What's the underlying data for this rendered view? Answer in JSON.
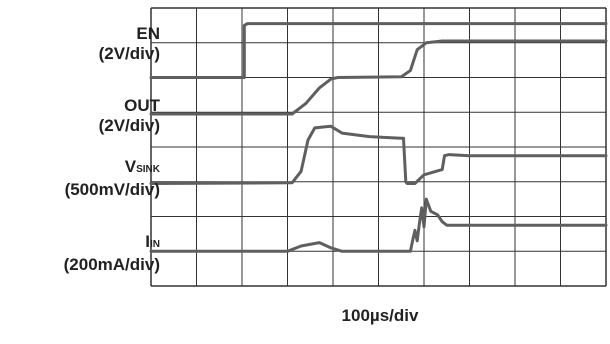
{
  "chart_data": {
    "type": "line",
    "title": "",
    "xlabel": "100µs/div",
    "grid": true,
    "x_divisions": 10,
    "y_divisions": 8,
    "trace_color": "#5f5f5f",
    "grid_color": "#333333",
    "channels": [
      {
        "name": "EN",
        "scale": "(2V/div)",
        "points": [
          [
            0,
            6.0
          ],
          [
            1.98,
            6.0
          ],
          [
            2.05,
            6.0
          ],
          [
            2.05,
            7.5
          ],
          [
            2.12,
            7.55
          ],
          [
            10,
            7.55
          ]
        ]
      },
      {
        "name": "OUT",
        "scale": "(2V/div)",
        "points": [
          [
            0,
            4.95
          ],
          [
            3.1,
            4.95
          ],
          [
            3.4,
            5.25
          ],
          [
            3.7,
            5.7
          ],
          [
            3.95,
            5.95
          ],
          [
            4.1,
            6.0
          ],
          [
            5.5,
            6.02
          ],
          [
            5.7,
            6.2
          ],
          [
            5.85,
            6.8
          ],
          [
            6.05,
            7.0
          ],
          [
            6.4,
            7.05
          ],
          [
            7,
            7.05
          ],
          [
            10,
            7.05
          ]
        ]
      },
      {
        "name": "V",
        "sub": "SINK",
        "scale": "(500mV/div)",
        "points": [
          [
            0,
            2.95
          ],
          [
            3.1,
            2.97
          ],
          [
            3.3,
            3.3
          ],
          [
            3.45,
            4.2
          ],
          [
            3.6,
            4.55
          ],
          [
            3.95,
            4.6
          ],
          [
            4.2,
            4.4
          ],
          [
            4.8,
            4.3
          ],
          [
            5.5,
            4.25
          ],
          [
            5.55,
            4.25
          ],
          [
            5.6,
            3.0
          ],
          [
            5.63,
            2.95
          ],
          [
            5.8,
            2.95
          ],
          [
            6.0,
            3.2
          ],
          [
            6.4,
            3.35
          ],
          [
            6.45,
            3.75
          ],
          [
            6.55,
            3.78
          ],
          [
            7,
            3.75
          ],
          [
            10,
            3.75
          ]
        ]
      },
      {
        "name": "I",
        "sub": "IN",
        "scale": "(200mA/div)",
        "points": [
          [
            0,
            1.0
          ],
          [
            3.0,
            1.0
          ],
          [
            3.3,
            1.15
          ],
          [
            3.7,
            1.25
          ],
          [
            3.95,
            1.1
          ],
          [
            4.2,
            1.0
          ],
          [
            5.7,
            1.0
          ],
          [
            5.75,
            1.3
          ],
          [
            5.8,
            1.6
          ],
          [
            5.85,
            1.3
          ],
          [
            5.9,
            1.8
          ],
          [
            5.95,
            2.25
          ],
          [
            6.0,
            1.7
          ],
          [
            6.05,
            2.5
          ],
          [
            6.15,
            2.15
          ],
          [
            6.3,
            2.05
          ],
          [
            6.4,
            1.85
          ],
          [
            6.5,
            1.75
          ],
          [
            10,
            1.75
          ]
        ]
      }
    ]
  }
}
